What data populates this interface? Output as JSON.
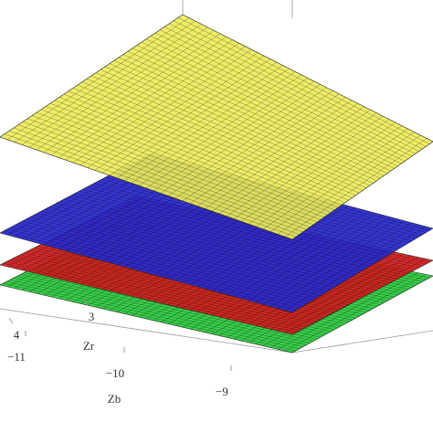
{
  "chart_data": {
    "type": "surface3d",
    "xlabel": "Zr",
    "ylabel": "Zb",
    "xticks": [
      4,
      3
    ],
    "yticks": [
      {
        "value": -11,
        "label": "−11"
      },
      {
        "value": -10,
        "label": "−10"
      },
      {
        "value": -9,
        "label": "−9"
      }
    ],
    "surfaces": [
      {
        "color": "#2ecc40"
      },
      {
        "color": "#d42020"
      },
      {
        "color": "#2a2ad0"
      },
      {
        "color": "#ecec5a"
      }
    ]
  }
}
